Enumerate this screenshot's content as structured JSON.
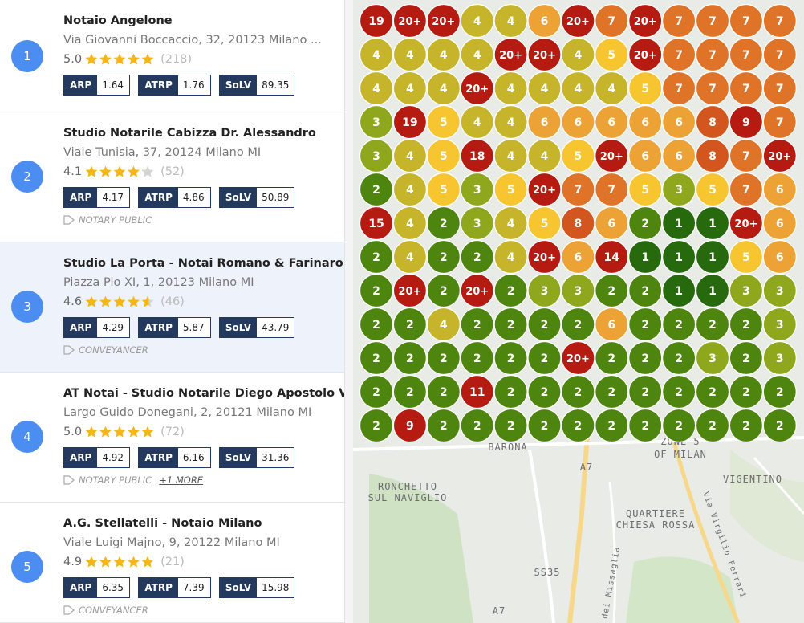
{
  "listings": [
    {
      "rank": "1",
      "name": "Notaio Angelone",
      "address": "Via Giovanni Boccaccio, 32, 20123 Milano ...",
      "rating": "5.0",
      "reviews": "(218)",
      "metrics": [
        {
          "label": "ARP",
          "value": "1.64"
        },
        {
          "label": "ATRP",
          "value": "1.76"
        },
        {
          "label": "SoLV",
          "value": "89.35"
        }
      ]
    },
    {
      "rank": "2",
      "name": "Studio Notarile Cabizza Dr. Alessandro",
      "address": "Viale Tunisia, 37, 20124 Milano MI",
      "rating": "4.1",
      "reviews": "(52)",
      "metrics": [
        {
          "label": "ARP",
          "value": "4.17"
        },
        {
          "label": "ATRP",
          "value": "4.86"
        },
        {
          "label": "SoLV",
          "value": "50.89"
        }
      ],
      "tag": "NOTARY PUBLIC"
    },
    {
      "rank": "3",
      "name": "Studio La Porta - Notai Romano & Farinaro",
      "address": "Piazza Pio XI, 1, 20123 Milano MI",
      "rating": "4.6",
      "reviews": "(46)",
      "metrics": [
        {
          "label": "ARP",
          "value": "4.29"
        },
        {
          "label": "ATRP",
          "value": "5.87"
        },
        {
          "label": "SoLV",
          "value": "43.79"
        }
      ],
      "tag": "CONVEYANCER"
    },
    {
      "rank": "4",
      "name": "AT Notai - Studio Notarile Diego Apostolo V",
      "address": "Largo Guido Donegani, 2, 20121 Milano MI",
      "rating": "5.0",
      "reviews": "(72)",
      "metrics": [
        {
          "label": "ARP",
          "value": "4.92"
        },
        {
          "label": "ATRP",
          "value": "6.16"
        },
        {
          "label": "SoLV",
          "value": "31.36"
        }
      ],
      "tag": "NOTARY PUBLIC",
      "more": "+1 MORE"
    },
    {
      "rank": "5",
      "name": "A.G. Stellatelli - Notaio Milano",
      "address": "Viale Luigi Majno, 9, 20122 Milano MI",
      "rating": "4.9",
      "reviews": "(21)",
      "metrics": [
        {
          "label": "ARP",
          "value": "6.35"
        },
        {
          "label": "ATRP",
          "value": "7.39"
        },
        {
          "label": "SoLV",
          "value": "15.98"
        }
      ],
      "tag": "CONVEYANCER"
    }
  ],
  "map": {
    "grid": [
      [
        "19",
        "20+",
        "20+",
        "4",
        "4",
        "6",
        "20+",
        "7",
        "20+",
        "7",
        "7",
        "7",
        "7"
      ],
      [
        "4",
        "4",
        "4",
        "4",
        "20+",
        "20+",
        "4",
        "5",
        "20+",
        "7",
        "7",
        "7",
        "7"
      ],
      [
        "4",
        "4",
        "4",
        "20+",
        "4",
        "4",
        "4",
        "4",
        "5",
        "7",
        "7",
        "7",
        "7"
      ],
      [
        "3",
        "19",
        "5",
        "4",
        "4",
        "6",
        "6",
        "6",
        "6",
        "6",
        "8",
        "9",
        "7"
      ],
      [
        "3",
        "4",
        "5",
        "18",
        "4",
        "4",
        "5",
        "20+",
        "6",
        "6",
        "8",
        "7",
        "20+"
      ],
      [
        "2",
        "4",
        "5",
        "3",
        "5",
        "20+",
        "7",
        "7",
        "5",
        "3",
        "5",
        "7",
        "6"
      ],
      [
        "15",
        "4",
        "2",
        "3",
        "4",
        "5",
        "8",
        "6",
        "2",
        "1",
        "1",
        "20+",
        "6"
      ],
      [
        "2",
        "4",
        "2",
        "2",
        "4",
        "20+",
        "6",
        "14",
        "1",
        "1",
        "1",
        "5",
        "6"
      ],
      [
        "2",
        "20+",
        "2",
        "20+",
        "2",
        "3",
        "3",
        "2",
        "2",
        "1",
        "1",
        "3",
        "3"
      ],
      [
        "2",
        "2",
        "4",
        "2",
        "2",
        "2",
        "2",
        "6",
        "2",
        "2",
        "2",
        "2",
        "3"
      ],
      [
        "2",
        "2",
        "2",
        "2",
        "2",
        "2",
        "20+",
        "2",
        "2",
        "2",
        "3",
        "2",
        "3"
      ],
      [
        "2",
        "2",
        "2",
        "11",
        "2",
        "2",
        "2",
        "2",
        "2",
        "2",
        "2",
        "2",
        "2"
      ],
      [
        "2",
        "9",
        "2",
        "2",
        "2",
        "2",
        "2",
        "2",
        "2",
        "2",
        "2",
        "2",
        "2"
      ]
    ],
    "labels": [
      "BARONA",
      "ZONE 5",
      "OF MILAN",
      "RONCHETTO",
      "SUL NAVIGLIO",
      "VIGENTINO",
      "QUARTIERE",
      "CHIESA ROSSA",
      "A7",
      "SS35",
      "A7",
      "Via Virgilio Ferrari",
      "Via dei Missaglia"
    ]
  }
}
